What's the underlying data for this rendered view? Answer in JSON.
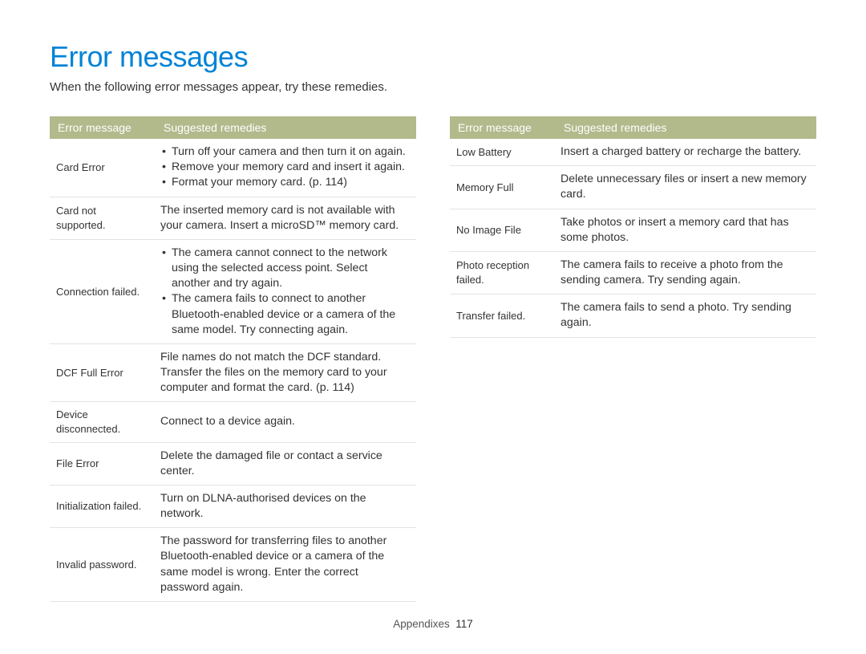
{
  "title": "Error messages",
  "intro": "When the following error messages appear, try these remedies.",
  "headers": {
    "col1": "Error message",
    "col2": "Suggested remedies"
  },
  "footer": {
    "section": "Appendixes",
    "page": "117"
  },
  "colors": {
    "title": "#0083d6",
    "header_bg": "#b2b98b",
    "header_text": "#ffffff",
    "body_text": "#333333",
    "row_border": "#e3e3e3",
    "page_bg": "#ffffff"
  },
  "left_rows": [
    {
      "error": "Card Error",
      "list": [
        "Turn off your camera and then turn it on again.",
        "Remove your memory card and insert it again.",
        "Format your memory card. (p. 114)"
      ]
    },
    {
      "error": "Card not supported.",
      "text": "The inserted memory card is not available with your camera. Insert a microSD™ memory card."
    },
    {
      "error": "Connection failed.",
      "list": [
        "The camera cannot connect to the network using the selected access point. Select another and try again.",
        "The camera fails to connect to another Bluetooth-enabled device or a camera of the same model. Try connecting again."
      ]
    },
    {
      "error": "DCF Full Error",
      "text": "File names do not match the DCF standard. Transfer the files on the memory card to your computer and format the card. (p. 114)"
    },
    {
      "error": "Device disconnected.",
      "text": "Connect to a device again."
    },
    {
      "error": "File Error",
      "text": "Delete the damaged file or contact a service center."
    },
    {
      "error": "Initialization failed.",
      "text": "Turn on DLNA-authorised devices on the network."
    },
    {
      "error": "Invalid password.",
      "text": "The password for transferring files to another Bluetooth-enabled device or a camera of the same model is wrong. Enter the correct password again."
    }
  ],
  "right_rows": [
    {
      "error": "Low Battery",
      "text": "Insert a charged battery or recharge the battery."
    },
    {
      "error": "Memory Full",
      "text": "Delete unnecessary files or insert a new memory card."
    },
    {
      "error": "No Image File",
      "text": "Take photos or insert a memory card that has some photos."
    },
    {
      "error": "Photo reception failed.",
      "text": "The camera fails to receive a photo from the sending camera. Try sending again."
    },
    {
      "error": "Transfer failed.",
      "text": "The camera fails to send a photo. Try sending again."
    }
  ]
}
